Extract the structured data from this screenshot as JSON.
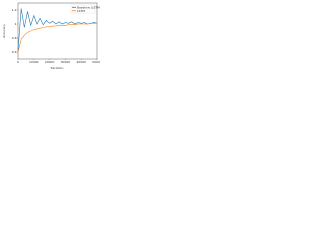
{
  "chart_data": {
    "type": "line",
    "x_label": "Iteration",
    "y_label": "Accuracy",
    "x": [
      0,
      2000,
      4000,
      6000,
      8000,
      10000,
      12000,
      14000,
      16000,
      18000,
      20000,
      22000,
      24000,
      26000,
      28000,
      30000,
      32000,
      34000,
      36000,
      38000,
      40000,
      42000,
      44000,
      46000,
      48000,
      50000
    ],
    "series": [
      {
        "name": "Baseline (LSTM)",
        "color": "#1f77b4",
        "values": [
          0.62,
          1.22,
          0.95,
          1.18,
          0.98,
          1.12,
          1.0,
          1.08,
          0.99,
          1.05,
          1.01,
          1.04,
          1.0,
          1.03,
          1.0,
          1.02,
          1.01,
          1.03,
          1.0,
          1.02,
          1.01,
          1.02,
          1.0,
          1.01,
          1.02,
          1.01
        ]
      },
      {
        "name": "LSTM",
        "color": "#ff7f0e",
        "values": [
          0.6,
          0.78,
          0.84,
          0.88,
          0.9,
          0.92,
          0.93,
          0.94,
          0.95,
          0.96,
          0.96,
          0.97,
          0.97,
          0.98,
          0.98,
          0.98,
          0.99,
          0.99,
          0.99,
          1.0,
          1.0,
          1.0,
          1.0,
          1.01,
          1.01,
          1.01
        ]
      }
    ],
    "xlim": [
      0,
      50000
    ],
    "xticks": [
      0,
      10000,
      20000,
      30000,
      40000,
      50000
    ],
    "ylim": [
      0.5,
      1.3
    ],
    "yticks": [
      0.6,
      0.8,
      1.0,
      1.2
    ],
    "legend": "upper right"
  }
}
